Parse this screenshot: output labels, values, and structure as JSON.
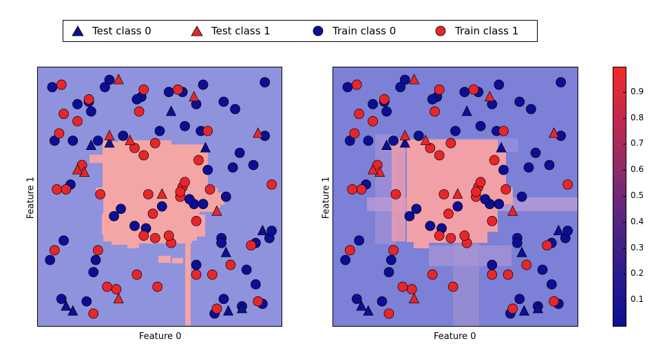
{
  "colors": {
    "class0": "#0b0f96",
    "class1": "#e8262a",
    "background0": "#8f93dd",
    "background1": "#f4a5a5",
    "background0_right": "#7c80d6"
  },
  "legend": {
    "items": [
      {
        "label": "Test class 0",
        "marker": "triangle",
        "class": 0
      },
      {
        "label": "Test class 1",
        "marker": "triangle",
        "class": 1
      },
      {
        "label": "Train class 0",
        "marker": "circle",
        "class": 0
      },
      {
        "label": "Train class 1",
        "marker": "circle",
        "class": 1
      }
    ]
  },
  "chart_data": [
    {
      "type": "scatter",
      "xlabel": "Feature 0",
      "ylabel": "Feature 1",
      "grid": false,
      "series": [
        {
          "name": "Train class 0",
          "points": [
            [
              4,
              73
            ],
            [
              66,
              88
            ],
            [
              79,
              50
            ],
            [
              8,
              32
            ],
            [
              21,
              19
            ],
            [
              19,
              89
            ],
            [
              22,
              24
            ],
            [
              61,
              79
            ],
            [
              51,
              46
            ],
            [
              42,
              91
            ],
            [
              85,
              68
            ],
            [
              95,
              6
            ],
            [
              98,
              33
            ],
            [
              18,
              7
            ],
            [
              74,
              2
            ],
            [
              77,
              33
            ],
            [
              30,
              42
            ],
            [
              78,
              8
            ],
            [
              34,
              75
            ],
            [
              71,
              61
            ],
            [
              69,
              47
            ],
            [
              65,
              47
            ],
            [
              83,
              86
            ],
            [
              78,
              89
            ],
            [
              91,
              63
            ],
            [
              96,
              75
            ],
            [
              12,
              73
            ],
            [
              11,
              55
            ],
            [
              63,
              49
            ],
            [
              33,
              45
            ],
            [
              88,
              20
            ],
            [
              44,
              37
            ],
            [
              60,
              93
            ],
            [
              68,
              77
            ],
            [
              20,
              85
            ],
            [
              69,
              96
            ],
            [
              86,
              5
            ],
            [
              39,
              38
            ],
            [
              92,
              14
            ],
            [
              23,
              73
            ],
            [
              3,
              95
            ],
            [
              2,
              24
            ],
            [
              14,
              88
            ],
            [
              28,
              98
            ],
            [
              54,
              93
            ],
            [
              40,
              90
            ],
            [
              26,
              95
            ],
            [
              50,
              77
            ],
            [
              66,
              22
            ],
            [
              82,
              62
            ],
            [
              96,
              97
            ],
            [
              99,
              36
            ],
            [
              92,
              31
            ],
            [
              7,
              8
            ],
            [
              77,
              31
            ]
          ]
        },
        {
          "name": "Train class 1",
          "points": [
            [
              45,
              51
            ],
            [
              40,
              18
            ],
            [
              55,
              31
            ],
            [
              24,
              51
            ],
            [
              31,
              12
            ],
            [
              48,
              33
            ],
            [
              48,
              72
            ],
            [
              41,
              85
            ],
            [
              58,
              94
            ],
            [
              9,
              53
            ],
            [
              47,
              43
            ],
            [
              73,
              18
            ],
            [
              16,
              63
            ],
            [
              59,
              50
            ],
            [
              43,
              94
            ],
            [
              8,
              84
            ],
            [
              4,
              28
            ],
            [
              81,
              22
            ],
            [
              7,
              96
            ],
            [
              75,
              4
            ],
            [
              21,
              2
            ],
            [
              49,
              13
            ],
            [
              66,
              18
            ],
            [
              67,
              65
            ],
            [
              54,
              34
            ],
            [
              99,
              55
            ],
            [
              71,
              77
            ],
            [
              23,
              28
            ],
            [
              14,
              81
            ],
            [
              90,
              30
            ],
            [
              60,
              54
            ],
            [
              93,
              7
            ],
            [
              27,
              13
            ],
            [
              59,
              52
            ],
            [
              39,
              70
            ],
            [
              5,
              53
            ],
            [
              43,
              67
            ],
            [
              6,
              76
            ],
            [
              72,
              53
            ],
            [
              19,
              90
            ],
            [
              61,
              56
            ],
            [
              66,
              40
            ],
            [
              43,
              34
            ]
          ]
        },
        {
          "name": "Test class 0",
          "points": [
            [
              28,
              72
            ],
            [
              80,
              3
            ],
            [
              95,
              36
            ],
            [
              55,
              85
            ],
            [
              79,
              27
            ],
            [
              12,
              3
            ],
            [
              9,
              5
            ],
            [
              86,
              4
            ],
            [
              70,
              70
            ],
            [
              20,
              71
            ]
          ]
        },
        {
          "name": "Test class 1",
          "points": [
            [
              32,
              98
            ],
            [
              51,
              51
            ],
            [
              28,
              75
            ],
            [
              17,
              60
            ],
            [
              75,
              44
            ],
            [
              37,
              73
            ],
            [
              93,
              76
            ],
            [
              65,
              91
            ],
            [
              14,
              61
            ],
            [
              32,
              8
            ]
          ]
        }
      ]
    },
    {
      "type": "scatter",
      "xlabel": "Feature 0",
      "ylabel": "Feature 1",
      "grid": false,
      "series": [
        {
          "name": "Train class 0",
          "points": [
            [
              4,
              73
            ],
            [
              66,
              88
            ],
            [
              79,
              50
            ],
            [
              8,
              32
            ],
            [
              21,
              19
            ],
            [
              19,
              89
            ],
            [
              22,
              24
            ],
            [
              61,
              79
            ],
            [
              51,
              46
            ],
            [
              42,
              91
            ],
            [
              85,
              68
            ],
            [
              95,
              6
            ],
            [
              98,
              33
            ],
            [
              18,
              7
            ],
            [
              74,
              2
            ],
            [
              77,
              33
            ],
            [
              30,
              42
            ],
            [
              78,
              8
            ],
            [
              34,
              75
            ],
            [
              71,
              61
            ],
            [
              69,
              47
            ],
            [
              65,
              47
            ],
            [
              83,
              86
            ],
            [
              78,
              89
            ],
            [
              91,
              63
            ],
            [
              96,
              75
            ],
            [
              12,
              73
            ],
            [
              11,
              55
            ],
            [
              63,
              49
            ],
            [
              33,
              45
            ],
            [
              88,
              20
            ],
            [
              44,
              37
            ],
            [
              60,
              93
            ],
            [
              68,
              77
            ],
            [
              20,
              85
            ],
            [
              69,
              96
            ],
            [
              86,
              5
            ],
            [
              39,
              38
            ],
            [
              92,
              14
            ],
            [
              23,
              73
            ],
            [
              3,
              95
            ],
            [
              2,
              24
            ],
            [
              14,
              88
            ],
            [
              28,
              98
            ],
            [
              54,
              93
            ],
            [
              40,
              90
            ],
            [
              26,
              95
            ],
            [
              50,
              77
            ],
            [
              66,
              22
            ],
            [
              82,
              62
            ],
            [
              96,
              97
            ],
            [
              99,
              36
            ],
            [
              92,
              31
            ],
            [
              7,
              8
            ],
            [
              77,
              31
            ]
          ]
        },
        {
          "name": "Train class 1",
          "points": [
            [
              45,
              51
            ],
            [
              40,
              18
            ],
            [
              55,
              31
            ],
            [
              24,
              51
            ],
            [
              31,
              12
            ],
            [
              48,
              33
            ],
            [
              48,
              72
            ],
            [
              41,
              85
            ],
            [
              58,
              94
            ],
            [
              9,
              53
            ],
            [
              47,
              43
            ],
            [
              73,
              18
            ],
            [
              16,
              63
            ],
            [
              59,
              50
            ],
            [
              43,
              94
            ],
            [
              8,
              84
            ],
            [
              4,
              28
            ],
            [
              81,
              22
            ],
            [
              7,
              96
            ],
            [
              75,
              4
            ],
            [
              21,
              2
            ],
            [
              49,
              13
            ],
            [
              66,
              18
            ],
            [
              67,
              65
            ],
            [
              54,
              34
            ],
            [
              99,
              55
            ],
            [
              71,
              77
            ],
            [
              23,
              28
            ],
            [
              14,
              81
            ],
            [
              90,
              30
            ],
            [
              60,
              54
            ],
            [
              93,
              7
            ],
            [
              27,
              13
            ],
            [
              59,
              52
            ],
            [
              39,
              70
            ],
            [
              5,
              53
            ],
            [
              43,
              67
            ],
            [
              6,
              76
            ],
            [
              72,
              53
            ],
            [
              19,
              90
            ],
            [
              61,
              56
            ],
            [
              66,
              40
            ],
            [
              43,
              34
            ]
          ]
        },
        {
          "name": "Test class 0",
          "points": [
            [
              28,
              72
            ],
            [
              80,
              3
            ],
            [
              95,
              36
            ],
            [
              55,
              85
            ],
            [
              79,
              27
            ],
            [
              12,
              3
            ],
            [
              9,
              5
            ],
            [
              86,
              4
            ],
            [
              70,
              70
            ],
            [
              20,
              71
            ]
          ]
        },
        {
          "name": "Test class 1",
          "points": [
            [
              32,
              98
            ],
            [
              51,
              51
            ],
            [
              28,
              75
            ],
            [
              17,
              60
            ],
            [
              75,
              44
            ],
            [
              37,
              73
            ],
            [
              93,
              76
            ],
            [
              65,
              91
            ],
            [
              14,
              61
            ],
            [
              32,
              8
            ]
          ]
        }
      ]
    }
  ],
  "colorbar": {
    "ticks": [
      "0.9",
      "0.8",
      "0.7",
      "0.6",
      "0.5",
      "0.4",
      "0.3",
      "0.2",
      "0.1"
    ],
    "range": [
      0,
      1
    ]
  }
}
